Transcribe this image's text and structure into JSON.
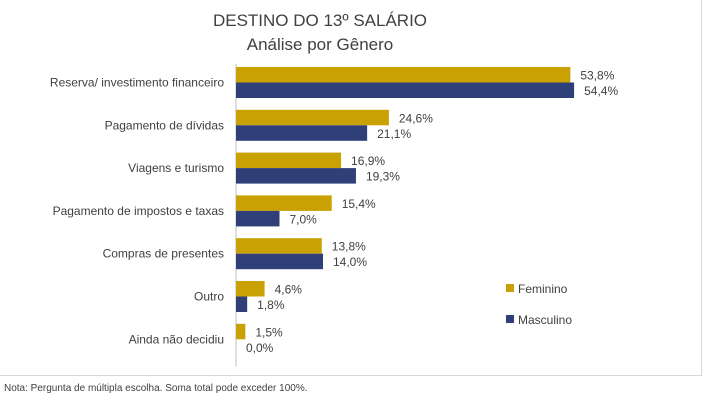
{
  "chart_data": {
    "type": "bar",
    "orientation": "horizontal",
    "title": "DESTINO DO 13º SALÁRIO",
    "subtitle": "Análise por Gênero",
    "categories": [
      "Reserva/ investimento financeiro",
      "Pagamento de dívidas",
      "Viagens e turismo",
      "Pagamento de impostos e taxas",
      "Compras de presentes",
      "Outro",
      "Ainda não decidiu"
    ],
    "series": [
      {
        "name": "Feminino",
        "color": "#C9A102",
        "values": [
          53.8,
          24.6,
          16.9,
          15.4,
          13.8,
          4.6,
          1.5
        ],
        "labels": [
          "53,8%",
          "24,6%",
          "16,9%",
          "15,4%",
          "13,8%",
          "4,6%",
          "1,5%"
        ]
      },
      {
        "name": "Masculino",
        "color": "#2F3F77",
        "values": [
          54.4,
          21.1,
          19.3,
          7.0,
          14.0,
          1.8,
          0.0
        ],
        "labels": [
          "54,4%",
          "21,1%",
          "19,3%",
          "7,0%",
          "14,0%",
          "1,8%",
          "0,0%"
        ]
      }
    ],
    "xlim": [
      0,
      100
    ],
    "grid": false,
    "legend_position": "right"
  },
  "note": "Nota: Pergunta de múltipla escolha. Soma total pode exceder 100%."
}
